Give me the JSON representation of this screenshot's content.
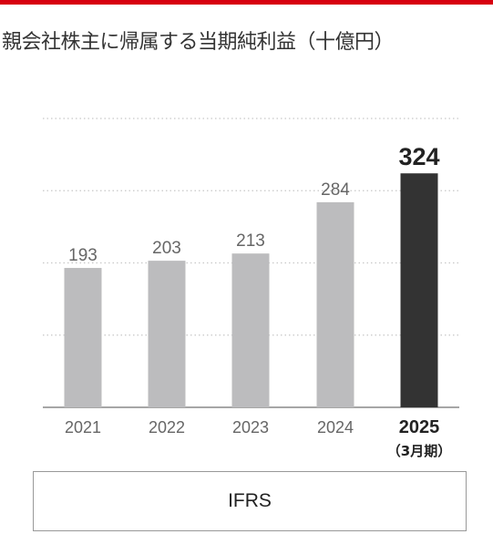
{
  "header": {
    "title": "親会社株主に帰属する当期純利益（十億円）"
  },
  "chart_data": {
    "type": "bar",
    "title": "親会社株主に帰属する当期純利益（十億円）",
    "categories": [
      "2021",
      "2022",
      "2023",
      "2024",
      "2025"
    ],
    "highlight_category_note": "（3月期）",
    "values": [
      193,
      203,
      213,
      284,
      324
    ],
    "ylim": [
      0,
      400
    ],
    "grid": "dotted horizontal lines",
    "colors": {
      "normal": "#bcbcbe",
      "highlight": "#333333",
      "accent": "#d7000f"
    },
    "highlight_index": 4
  },
  "footer": {
    "basis_label": "IFRS"
  }
}
